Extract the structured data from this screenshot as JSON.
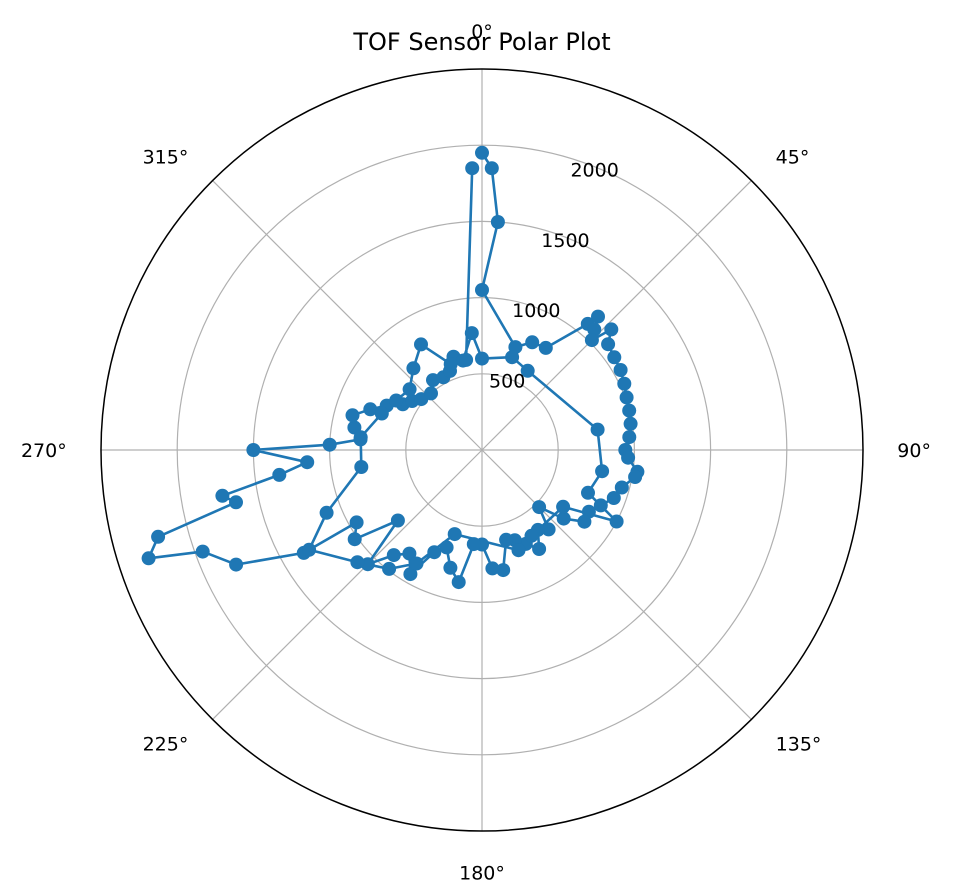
{
  "chart_data": {
    "type": "scatter",
    "projection": "polar",
    "title": "TOF Sensor Polar Plot",
    "theta_direction": "clockwise",
    "theta_zero": "top",
    "theta_ticks": [
      "0°",
      "45°",
      "90°",
      "135°",
      "180°",
      "225°",
      "270°",
      "315°"
    ],
    "r_ticks": [
      500,
      1000,
      1500,
      2000
    ],
    "r_tick_labels": [
      "500",
      "1000",
      "1500",
      "2000"
    ],
    "rlim": [
      0,
      2500
    ],
    "grid": true,
    "series": [
      {
        "color": "#1f77b4",
        "marker": "circle",
        "points": [
          {
            "theta": 0,
            "r": 1950
          },
          {
            "theta": 2,
            "r": 1850
          },
          {
            "theta": 4,
            "r": 1500
          },
          {
            "theta": 0,
            "r": 1050
          },
          {
            "theta": 18,
            "r": 710
          },
          {
            "theta": 25,
            "r": 780
          },
          {
            "theta": 32,
            "r": 790
          },
          {
            "theta": 40,
            "r": 1080
          },
          {
            "theta": 41,
            "r": 1160
          },
          {
            "theta": 43,
            "r": 1080
          },
          {
            "theta": 45,
            "r": 1020
          },
          {
            "theta": 47,
            "r": 1160
          },
          {
            "theta": 50,
            "r": 1080
          },
          {
            "theta": 55,
            "r": 1060
          },
          {
            "theta": 60,
            "r": 1050
          },
          {
            "theta": 65,
            "r": 1030
          },
          {
            "theta": 70,
            "r": 1010
          },
          {
            "theta": 75,
            "r": 1000
          },
          {
            "theta": 80,
            "r": 990
          },
          {
            "theta": 85,
            "r": 970
          },
          {
            "theta": 90,
            "r": 940
          },
          {
            "theta": 93,
            "r": 960
          },
          {
            "theta": 98,
            "r": 1030
          },
          {
            "theta": 100,
            "r": 1020
          },
          {
            "theta": 105,
            "r": 950
          },
          {
            "theta": 110,
            "r": 920
          },
          {
            "theta": 115,
            "r": 860
          },
          {
            "theta": 120,
            "r": 810
          },
          {
            "theta": 125,
            "r": 820
          },
          {
            "theta": 130,
            "r": 700
          },
          {
            "theta": 135,
            "r": 530
          },
          {
            "theta": 140,
            "r": 680
          },
          {
            "theta": 145,
            "r": 640
          },
          {
            "theta": 150,
            "r": 750
          },
          {
            "theta": 155,
            "r": 680
          },
          {
            "theta": 160,
            "r": 630
          },
          {
            "theta": 165,
            "r": 610
          },
          {
            "theta": 170,
            "r": 800
          },
          {
            "theta": 175,
            "r": 780
          },
          {
            "theta": 180,
            "r": 620
          },
          {
            "theta": 185,
            "r": 620
          },
          {
            "theta": 190,
            "r": 880
          },
          {
            "theta": 195,
            "r": 800
          },
          {
            "theta": 200,
            "r": 680
          },
          {
            "theta": 205,
            "r": 740
          },
          {
            "theta": 210,
            "r": 940
          },
          {
            "theta": 215,
            "r": 830
          },
          {
            "theta": 220,
            "r": 900
          },
          {
            "theta": 225,
            "r": 1060
          },
          {
            "theta": 230,
            "r": 720
          },
          {
            "theta": 235,
            "r": 1020
          },
          {
            "theta": 240,
            "r": 950
          },
          {
            "theta": 240,
            "r": 1350
          },
          {
            "theta": 245,
            "r": 1780
          },
          {
            "theta": 250,
            "r": 1950
          },
          {
            "theta": 252,
            "r": 2300
          },
          {
            "theta": 255,
            "r": 2200
          },
          {
            "theta": 258,
            "r": 1650
          },
          {
            "theta": 260,
            "r": 1730
          },
          {
            "theta": 263,
            "r": 1340
          },
          {
            "theta": 266,
            "r": 1150
          },
          {
            "theta": 270,
            "r": 1500
          },
          {
            "theta": 272,
            "r": 1000
          },
          {
            "theta": 275,
            "r": 800
          },
          {
            "theta": 280,
            "r": 850
          },
          {
            "theta": 285,
            "r": 880
          },
          {
            "theta": 290,
            "r": 780
          },
          {
            "theta": 295,
            "r": 690
          },
          {
            "theta": 300,
            "r": 600
          },
          {
            "theta": 305,
            "r": 560
          },
          {
            "theta": 310,
            "r": 520
          },
          {
            "theta": 318,
            "r": 500
          },
          {
            "theta": 325,
            "r": 560
          },
          {
            "theta": 332,
            "r": 540
          },
          {
            "theta": 338,
            "r": 560
          },
          {
            "theta": 343,
            "r": 640
          },
          {
            "theta": 348,
            "r": 600
          },
          {
            "theta": 355,
            "r": 770
          },
          {
            "theta": 0,
            "r": 600
          },
          {
            "theta": 18,
            "r": 640
          },
          {
            "theta": 30,
            "r": 600
          },
          {
            "theta": 80,
            "r": 770
          },
          {
            "theta": 100,
            "r": 800
          },
          {
            "theta": 112,
            "r": 750
          },
          {
            "theta": 118,
            "r": 1000
          },
          {
            "theta": 125,
            "r": 650
          },
          {
            "theta": 150,
            "r": 650
          },
          {
            "theta": 160,
            "r": 700
          },
          {
            "theta": 198,
            "r": 580
          },
          {
            "theta": 210,
            "r": 860
          },
          {
            "theta": 218,
            "r": 990
          },
          {
            "theta": 228,
            "r": 1100
          },
          {
            "theta": 240,
            "r": 1310
          },
          {
            "theta": 248,
            "r": 1100
          },
          {
            "theta": 262,
            "r": 800
          },
          {
            "theta": 276,
            "r": 800
          },
          {
            "theta": 290,
            "r": 700
          },
          {
            "theta": 300,
            "r": 650
          },
          {
            "theta": 310,
            "r": 620
          },
          {
            "theta": 320,
            "r": 700
          },
          {
            "theta": 330,
            "r": 800
          },
          {
            "theta": 340,
            "r": 600
          },
          {
            "theta": 350,
            "r": 600
          },
          {
            "theta": 358,
            "r": 1850
          }
        ]
      }
    ]
  }
}
